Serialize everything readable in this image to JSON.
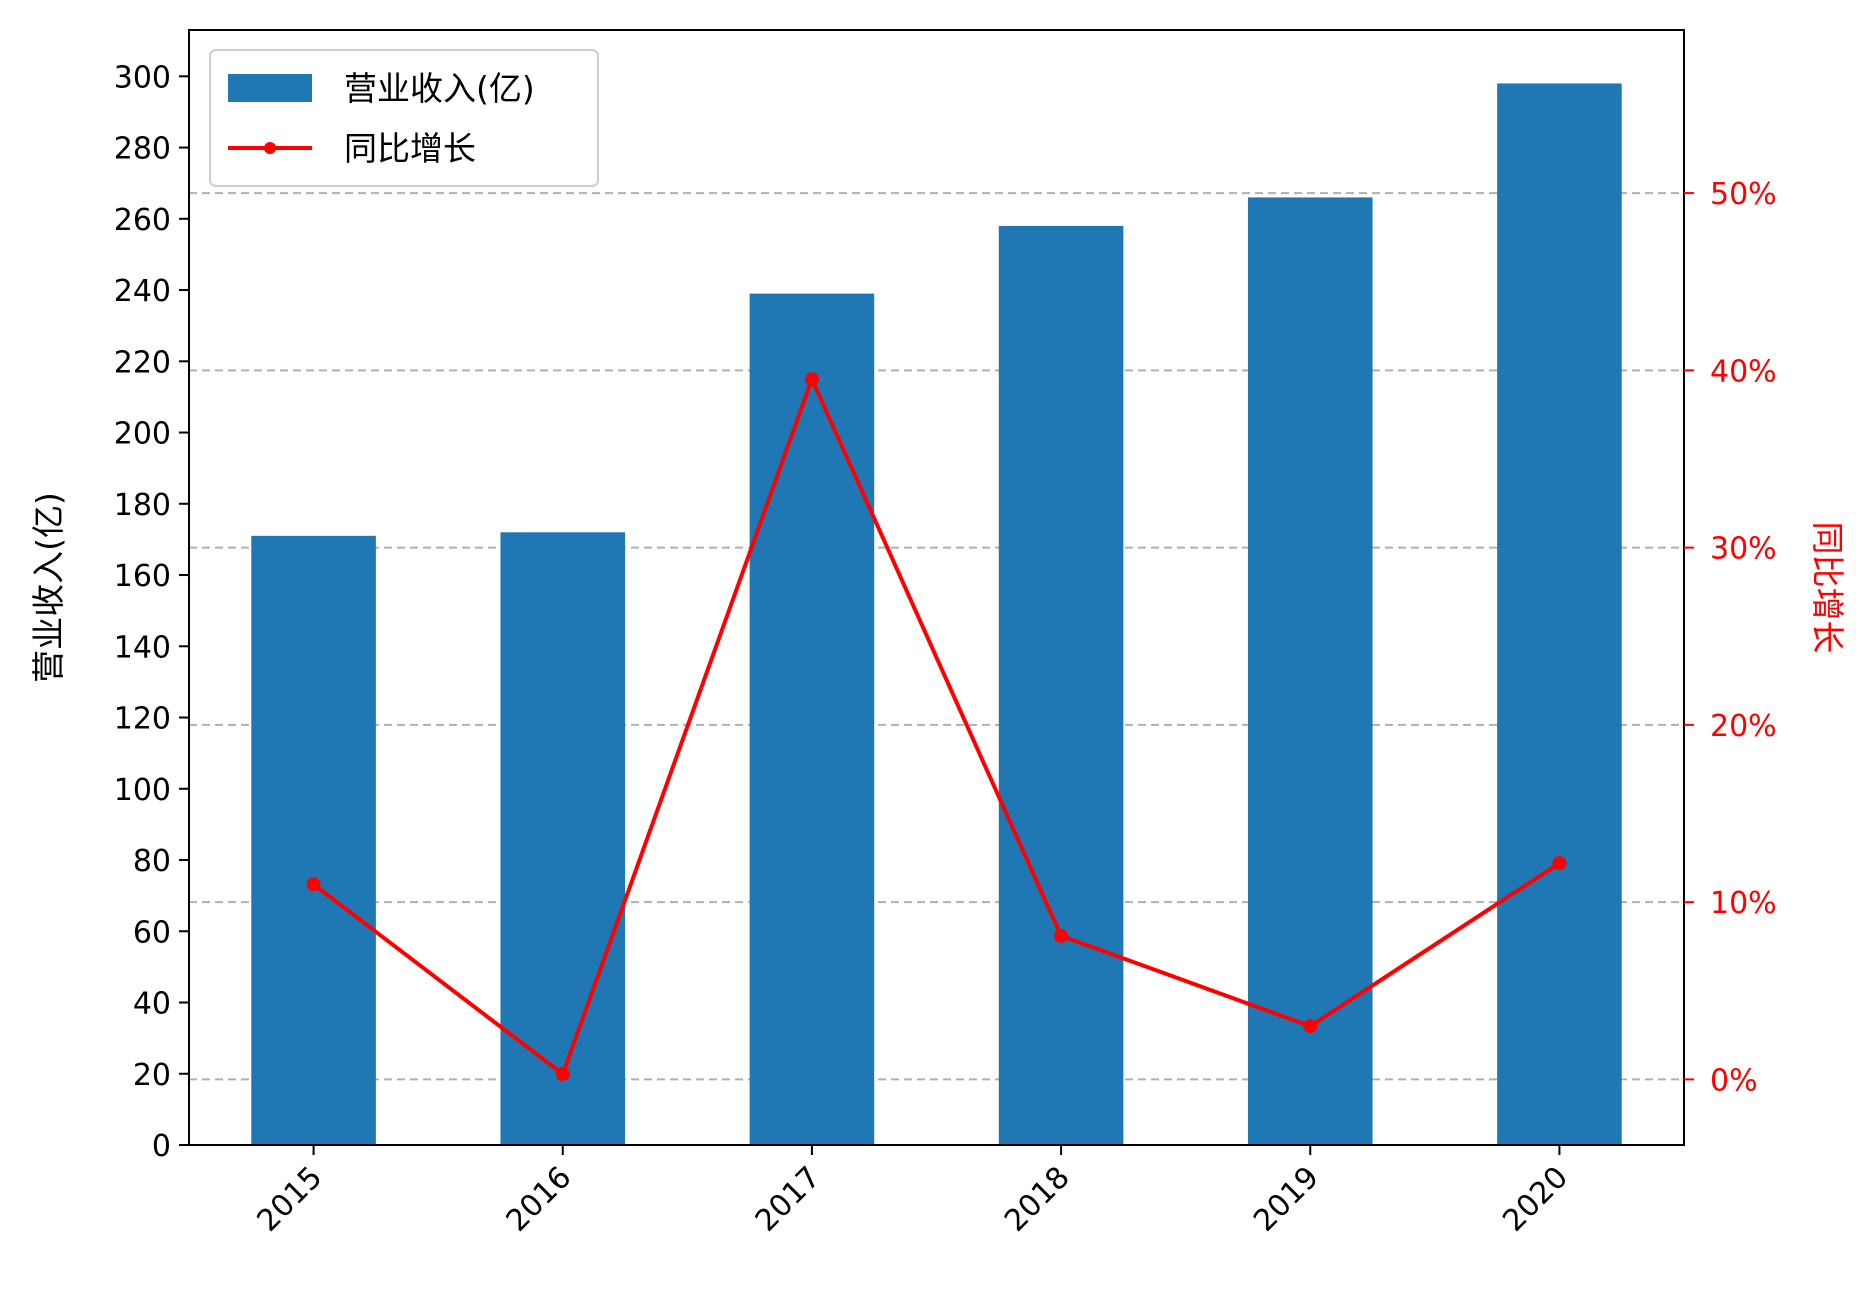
{
  "chart_data": {
    "type": "bar+line",
    "categories": [
      "2015",
      "2016",
      "2017",
      "2018",
      "2019",
      "2020"
    ],
    "series": [
      {
        "name": "营业收入(亿)",
        "type": "bar",
        "axis": "left",
        "values": [
          171,
          172,
          239,
          258,
          266,
          298
        ]
      },
      {
        "name": "同比增长",
        "type": "line",
        "axis": "right",
        "values": [
          11.0,
          0.3,
          39.5,
          8.1,
          3.0,
          12.2
        ]
      }
    ],
    "left_axis": {
      "label": "营业收入(亿)",
      "range": [
        0,
        313
      ],
      "ticks": [
        0,
        20,
        40,
        60,
        80,
        100,
        120,
        140,
        160,
        180,
        200,
        220,
        240,
        260,
        280,
        300
      ]
    },
    "right_axis": {
      "label": "同比增长",
      "range": [
        -3.7,
        59.2
      ],
      "ticks": [
        0,
        10,
        20,
        30,
        40,
        50
      ],
      "tick_labels": [
        "0%",
        "10%",
        "20%",
        "30%",
        "40%",
        "50%"
      ]
    },
    "legend": {
      "placement": "upper-left"
    },
    "grid": {
      "enabled": true,
      "axis": "right-y",
      "style": "dashed"
    },
    "colors": {
      "bar": "#1f77b4",
      "line": "#ff0000",
      "right_axis": "#ff0000",
      "grid": "#b0b0b0"
    }
  }
}
